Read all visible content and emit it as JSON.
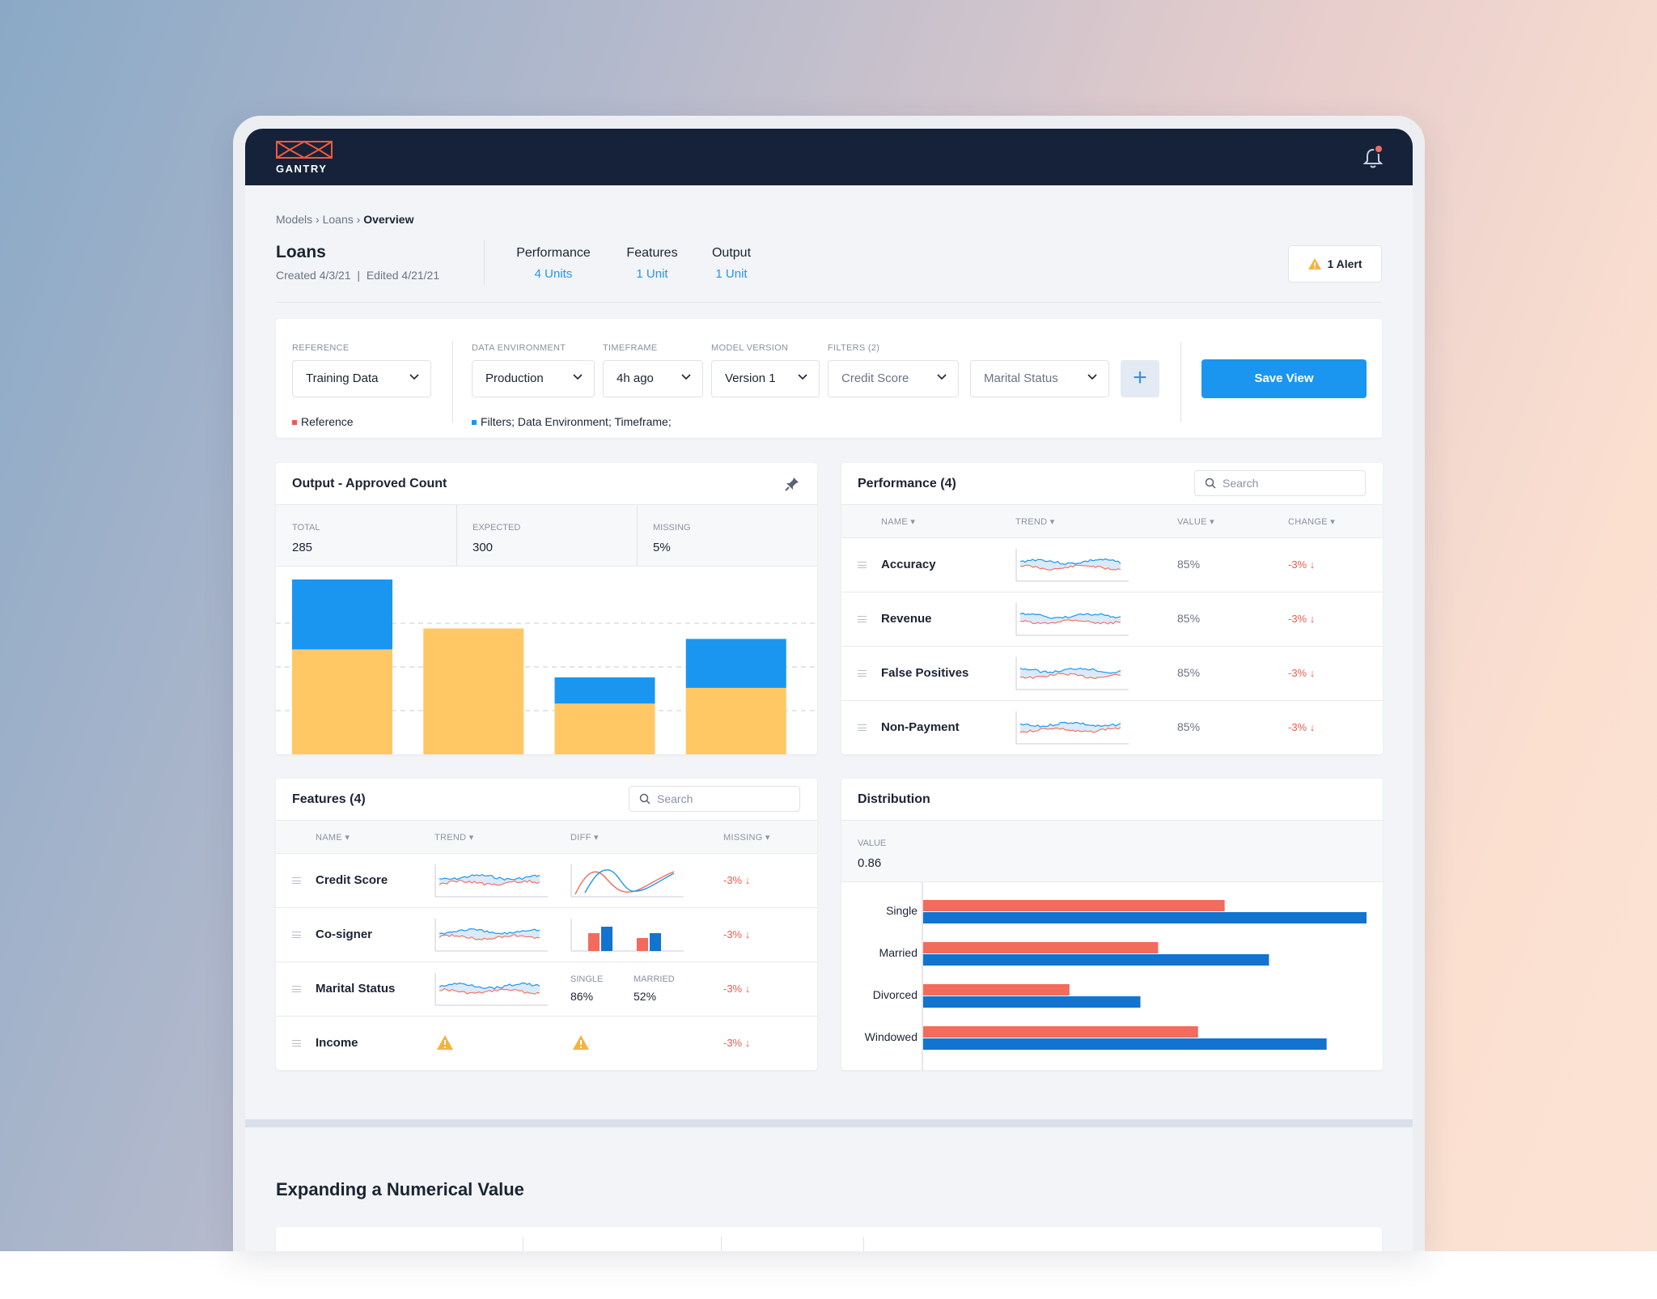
{
  "app": {
    "logo_text": "GANTRY",
    "notification_icon": "bell-icon"
  },
  "breadcrumb": {
    "items": [
      "Models",
      "Loans"
    ],
    "separator": "›",
    "current": "Overview"
  },
  "model": {
    "title": "Loans",
    "meta": "Created 4/3/21  |  Edited 4/21/21"
  },
  "stats": [
    {
      "label": "Performance",
      "value": "4 Units"
    },
    {
      "label": "Features",
      "value": "1 Unit"
    },
    {
      "label": "Output",
      "value": "1 Unit"
    }
  ],
  "alert": {
    "label": "1 Alert",
    "color": "#f6b23f"
  },
  "filters": {
    "reference": {
      "label": "REFERENCE",
      "value": "Training Data",
      "legend": "Reference",
      "legend_color": "#ef5a4a"
    },
    "data_environment": {
      "label": "DATA ENVIRONMENT",
      "value": "Production"
    },
    "timeframe": {
      "label": "TIMEFRAME",
      "value": "4h ago"
    },
    "model_version": {
      "label": "MODEL VERSION",
      "value": "Version 1"
    },
    "filters_label": "FILTERS (2)",
    "filter_values": [
      "Credit Score",
      "Marital Status"
    ],
    "add_label": "+",
    "legend": "Filters; Data Environment; Timeframe;",
    "legend_color": "#1a96f0",
    "save_label": "Save View"
  },
  "output_card": {
    "title": "Output - Approved Count",
    "stats": [
      {
        "label": "TOTAL",
        "value": "285"
      },
      {
        "label": "EXPECTED",
        "value": "300"
      },
      {
        "label": "MISSING",
        "value": "5%"
      }
    ]
  },
  "chart_data": {
    "type": "bar",
    "stacked": true,
    "categories": [
      "",
      "",
      "",
      ""
    ],
    "series": [
      {
        "color": "#ffc865",
        "values": [
          60,
          72,
          29,
          38
        ]
      },
      {
        "color": "#1a96f0",
        "values": [
          40,
          0,
          15,
          28
        ]
      }
    ],
    "ylim": [
      0,
      100
    ],
    "grid": true,
    "gridlines": [
      25,
      50,
      75
    ]
  },
  "performance": {
    "title": "Performance (4)",
    "search_placeholder": "Search",
    "columns": [
      "NAME",
      "TREND",
      "VALUE",
      "CHANGE"
    ],
    "rows": [
      {
        "name": "Accuracy",
        "value": "85%",
        "change": "-3%"
      },
      {
        "name": "Revenue",
        "value": "85%",
        "change": "-3%"
      },
      {
        "name": "False Positives",
        "value": "85%",
        "change": "-3%"
      },
      {
        "name": "Non-Payment",
        "value": "85%",
        "change": "-3%"
      }
    ]
  },
  "features": {
    "title": "Features (4)",
    "search_placeholder": "Search",
    "columns": [
      "NAME",
      "TREND",
      "DIFF",
      "MISSING"
    ],
    "rows": [
      {
        "name": "Credit Score",
        "missing": "-3%"
      },
      {
        "name": "Co-signer",
        "missing": "-3%"
      },
      {
        "name": "Marital Status",
        "missing": "-3%",
        "diff_labels": [
          "SINGLE",
          "MARRIED"
        ],
        "diff_values": [
          "86%",
          "52%"
        ]
      },
      {
        "name": "Income",
        "missing": "-3%"
      }
    ],
    "cosigner_diff": {
      "red": [
        0.55,
        0.4
      ],
      "blue": [
        0.75,
        0.55
      ]
    }
  },
  "distribution": {
    "title": "Distribution",
    "value_label": "VALUE",
    "value": "0.86",
    "categories": [
      "Single",
      "Married",
      "Divorced",
      "Windowed"
    ],
    "reference": [
      0.68,
      0.53,
      0.33,
      0.62
    ],
    "current": [
      1.0,
      0.78,
      0.49,
      0.91
    ],
    "reference_color": "#f26b5b",
    "current_color": "#1273d0"
  },
  "section": {
    "title": "Expanding a Numerical Value"
  }
}
